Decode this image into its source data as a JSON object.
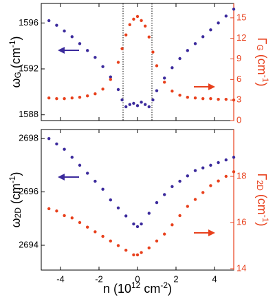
{
  "chart_data": [
    {
      "type": "scatter",
      "y_label": {
        "main": "ω",
        "sub": "G",
        "unit": " (cm",
        "sup": "-1",
        "close": ")"
      },
      "y2_label": {
        "main": "Γ",
        "sub": "G",
        "unit": " (cm",
        "sup": "-1",
        "close": ")"
      },
      "xlim": [
        -5,
        5
      ],
      "xticks": [
        -4,
        -2,
        0,
        2,
        4
      ],
      "ylim": [
        1587.5,
        1597.7
      ],
      "yticks": [
        1588,
        1592,
        1596
      ],
      "y2lim": [
        0,
        17.1
      ],
      "y2ticks": [
        0,
        3,
        6,
        9,
        12,
        15
      ],
      "vlines": [
        -0.75,
        0.75
      ],
      "x": [
        -4.6,
        -4.2,
        -3.8,
        -3.4,
        -3.0,
        -2.6,
        -2.2,
        -1.8,
        -1.4,
        -1.0,
        -0.8,
        -0.6,
        -0.4,
        -0.2,
        0,
        0.2,
        0.4,
        0.6,
        0.8,
        1.0,
        1.4,
        1.8,
        2.2,
        2.6,
        3.0,
        3.4,
        3.8,
        4.2,
        4.6,
        5.0
      ],
      "series": [
        {
          "color": "#3b2a9c",
          "values": [
            1596.2,
            1595.8,
            1595.3,
            1594.8,
            1594.2,
            1593.6,
            1593.0,
            1592.2,
            1591.3,
            1590.2,
            1589.3,
            1588.7,
            1588.9,
            1589.0,
            1588.8,
            1589.1,
            1588.9,
            1588.7,
            1589.3,
            1590.1,
            1591.2,
            1592.1,
            1592.9,
            1593.6,
            1594.2,
            1594.8,
            1595.4,
            1596.0,
            1596.6,
            1597.2
          ]
        },
        {
          "color": "#e8401c",
          "axis": "y2",
          "values": [
            3.3,
            3.2,
            3.2,
            3.3,
            3.4,
            3.6,
            3.9,
            4.6,
            6.0,
            8.5,
            10.5,
            12.5,
            14.0,
            14.8,
            15.2,
            14.6,
            13.8,
            12.2,
            10.0,
            8.0,
            5.6,
            4.3,
            3.7,
            3.4,
            3.3,
            3.2,
            3.2,
            3.1,
            3.1,
            3.0
          ]
        }
      ]
    },
    {
      "type": "scatter",
      "x_label": {
        "main": "n (10",
        "sup": "12",
        "unit": " cm",
        "sup2": "-2",
        "close": ")"
      },
      "y_label": {
        "main": "ω",
        "sub": "2D",
        "unit": " (cm",
        "sup": "-1",
        "close": ")"
      },
      "y2_label": {
        "main": "Γ",
        "sub": "2D",
        "unit": " (cm",
        "sup": "-1",
        "close": ")"
      },
      "xlim": [
        -5,
        5
      ],
      "xticks": [
        -4,
        -2,
        0,
        2,
        4
      ],
      "ylim": [
        2693.07,
        2698.34
      ],
      "yticks": [
        2694,
        2696,
        2698
      ],
      "y2lim": [
        13.94,
        20.03
      ],
      "y2ticks": [
        14,
        16,
        18
      ],
      "x": [
        -4.6,
        -4.2,
        -3.8,
        -3.4,
        -3.0,
        -2.6,
        -2.2,
        -1.8,
        -1.4,
        -1.0,
        -0.6,
        -0.2,
        0,
        0.2,
        0.6,
        1.0,
        1.4,
        1.8,
        2.2,
        2.6,
        3.0,
        3.4,
        3.8,
        4.2,
        4.6,
        5.0
      ],
      "series": [
        {
          "color": "#3b2a9c",
          "values": [
            2698.0,
            2697.8,
            2697.6,
            2697.3,
            2697.0,
            2696.7,
            2696.4,
            2696.1,
            2695.7,
            2695.4,
            2695.1,
            2694.8,
            2694.7,
            2694.8,
            2695.2,
            2695.6,
            2695.9,
            2696.2,
            2696.4,
            2696.6,
            2696.8,
            2696.9,
            2697.0,
            2697.1,
            2697.2,
            2697.3
          ]
        },
        {
          "color": "#e8401c",
          "axis": "y2",
          "values": [
            16.6,
            16.5,
            16.3,
            16.2,
            16.0,
            15.8,
            15.6,
            15.4,
            15.2,
            15.0,
            14.8,
            14.6,
            14.6,
            14.7,
            14.9,
            15.2,
            15.5,
            15.9,
            16.3,
            16.7,
            17.0,
            17.3,
            17.6,
            17.8,
            18.0,
            18.2
          ]
        }
      ]
    }
  ]
}
